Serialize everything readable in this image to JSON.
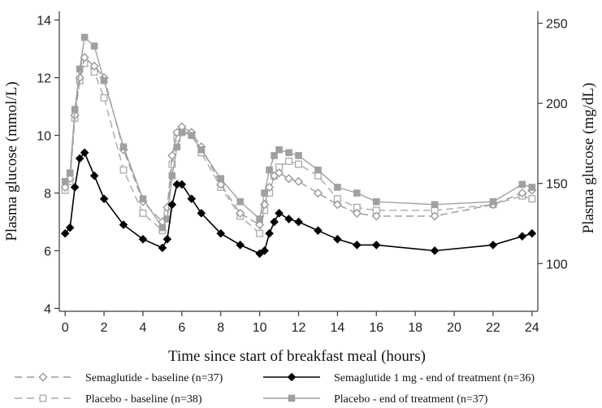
{
  "chart_data": {
    "type": "line",
    "title": "",
    "xlabel": "Time since start of breakfast meal (hours)",
    "ylabel": "Plasma glucose (mmol/L)",
    "y2label": "Plasma glucose (mg/dL)",
    "xlim": [
      -0.3,
      24.3
    ],
    "ylim": [
      3.9,
      14.3
    ],
    "x_ticks": [
      "0",
      "2",
      "4",
      "6",
      "8",
      "10",
      "12",
      "14",
      "16",
      "18",
      "20",
      "22",
      "24"
    ],
    "y_ticks": [
      "4",
      "6",
      "8",
      "10",
      "12",
      "14"
    ],
    "y2_ticks": [
      "100",
      "150",
      "200",
      "250"
    ],
    "y2_ticks_mgdl": [
      100,
      150,
      200,
      250
    ],
    "y2_conversion_mgdl_per_mmol": 18,
    "grid": false,
    "legend_position": "bottom",
    "series": [
      {
        "name": "Semaglutide - baseline (n=37)",
        "color": "#999999",
        "line_style": "dashed",
        "marker": "diamond-open",
        "x": [
          0,
          0.25,
          0.5,
          0.75,
          1,
          1.5,
          2,
          3,
          4,
          5,
          5.25,
          5.5,
          5.75,
          6,
          6.5,
          7,
          8,
          9,
          10,
          10.25,
          10.5,
          10.75,
          11,
          11.5,
          12,
          13,
          14,
          15,
          16,
          19,
          22,
          23.5,
          24
        ],
        "y": [
          8.2,
          8.5,
          10.7,
          12.0,
          12.7,
          12.4,
          12.0,
          9.5,
          7.7,
          7.0,
          7.5,
          9.3,
          10.1,
          10.3,
          10.1,
          9.6,
          8.3,
          7.3,
          6.9,
          7.6,
          8.2,
          8.6,
          8.7,
          8.5,
          8.4,
          8.0,
          7.6,
          7.3,
          7.2,
          7.2,
          7.6,
          8.0,
          8.1
        ]
      },
      {
        "name": "Placebo - baseline (n=38)",
        "color": "#aaaaaa",
        "line_style": "dashed",
        "marker": "square-open",
        "x": [
          0,
          0.25,
          0.5,
          0.75,
          1,
          1.5,
          2,
          3,
          4,
          5,
          5.25,
          5.5,
          5.75,
          6,
          6.5,
          7,
          8,
          9,
          10,
          10.25,
          10.5,
          10.75,
          11,
          11.5,
          12,
          13,
          14,
          15,
          16,
          19,
          22,
          23.5,
          24
        ],
        "y": [
          8.1,
          8.4,
          10.6,
          11.9,
          12.5,
          12.2,
          11.3,
          8.8,
          7.3,
          6.7,
          7.3,
          9.0,
          9.9,
          10.2,
          10.0,
          9.4,
          8.2,
          7.2,
          6.6,
          7.4,
          8.0,
          8.6,
          8.9,
          9.1,
          9.0,
          8.6,
          7.8,
          7.5,
          7.4,
          7.4,
          7.6,
          7.9,
          7.8
        ]
      },
      {
        "name": "Semaglutide 1 mg - end of treatment (n=36)",
        "color": "#000000",
        "line_style": "solid",
        "marker": "diamond-filled",
        "x": [
          0,
          0.25,
          0.5,
          0.75,
          1,
          1.5,
          2,
          3,
          4,
          5,
          5.25,
          5.5,
          5.75,
          6,
          6.5,
          7,
          8,
          9,
          10,
          10.25,
          10.5,
          10.75,
          11,
          11.5,
          12,
          13,
          14,
          15,
          16,
          19,
          22,
          23.5,
          24
        ],
        "y": [
          6.6,
          6.8,
          8.2,
          9.2,
          9.4,
          8.6,
          7.8,
          6.9,
          6.4,
          6.1,
          6.4,
          7.6,
          8.3,
          8.3,
          7.8,
          7.3,
          6.6,
          6.2,
          5.9,
          6.0,
          6.6,
          7.0,
          7.3,
          7.1,
          7.0,
          6.7,
          6.4,
          6.2,
          6.2,
          6.0,
          6.2,
          6.5,
          6.6
        ]
      },
      {
        "name": "Placebo - end of treatment (n=37)",
        "color": "#a0a0a0",
        "line_style": "solid",
        "marker": "square-filled",
        "x": [
          0,
          0.25,
          0.5,
          0.75,
          1,
          1.5,
          2,
          3,
          4,
          5,
          5.25,
          5.5,
          5.75,
          6,
          6.5,
          7,
          8,
          9,
          10,
          10.25,
          10.5,
          10.75,
          11,
          11.5,
          12,
          13,
          14,
          15,
          16,
          19,
          22,
          23.5,
          24
        ],
        "y": [
          8.4,
          8.7,
          10.9,
          12.3,
          13.4,
          13.1,
          11.9,
          9.6,
          7.8,
          6.8,
          7.1,
          8.6,
          9.6,
          10.1,
          10.0,
          9.5,
          8.5,
          7.7,
          7.1,
          8.0,
          8.8,
          9.3,
          9.5,
          9.4,
          9.3,
          8.8,
          8.2,
          8.0,
          7.7,
          7.6,
          7.7,
          8.3,
          8.2
        ]
      }
    ]
  }
}
